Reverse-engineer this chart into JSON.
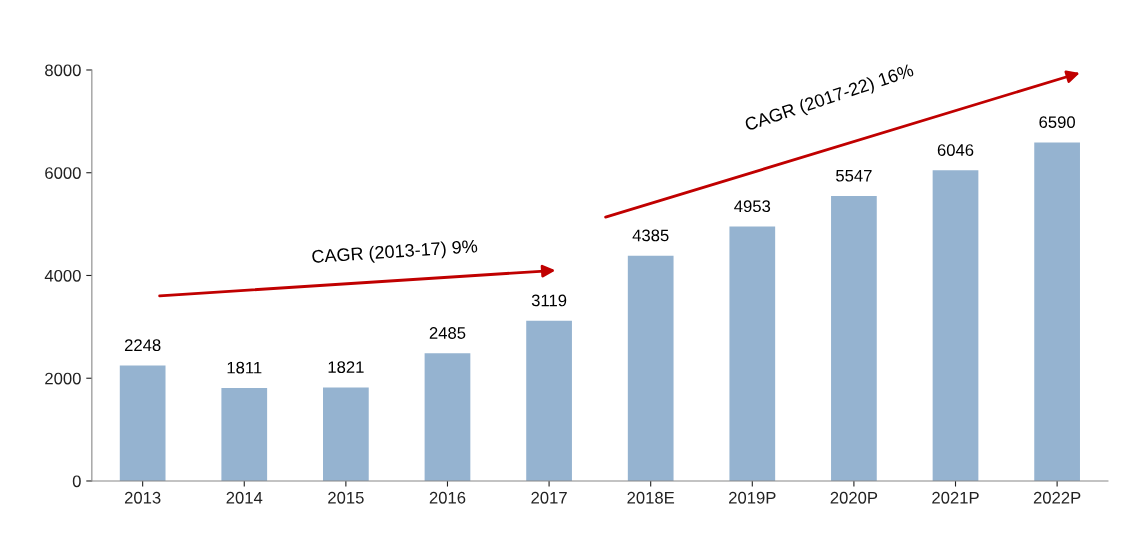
{
  "chart_data": {
    "type": "bar",
    "categories": [
      "2013",
      "2014",
      "2015",
      "2016",
      "2017",
      "2018E",
      "2019P",
      "2020P",
      "2021P",
      "2022P"
    ],
    "values": [
      2248,
      1811,
      1821,
      2485,
      3119,
      4385,
      4953,
      5547,
      6046,
      6590
    ],
    "color": "#95b3d0",
    "ylim": [
      0,
      8000
    ],
    "yticks": [
      0,
      2000,
      4000,
      6000,
      8000
    ],
    "data_labels": true,
    "grid": false,
    "legend": false,
    "annotations": [
      "CAGR (2013-17) 9%",
      "CAGR (2017-22) 16%"
    ]
  }
}
